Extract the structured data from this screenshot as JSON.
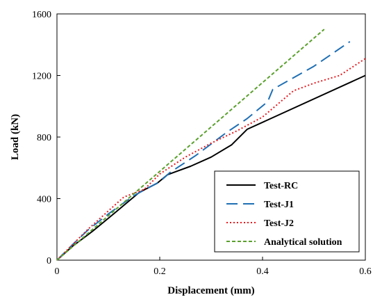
{
  "chart_data": {
    "type": "line",
    "xlabel": "Displacement (mm)",
    "ylabel": "Load (kN)",
    "xlim": [
      0,
      0.6
    ],
    "ylim": [
      0,
      1600
    ],
    "xticks": [
      "0",
      "0.2",
      "0.4",
      "0.6"
    ],
    "yticks": [
      "0",
      "400",
      "800",
      "1200",
      "1600"
    ],
    "xtick_values": [
      0,
      0.2,
      0.4,
      0.6
    ],
    "ytick_values": [
      0,
      400,
      800,
      1200,
      1600
    ],
    "grid": false,
    "legend_position": "bottom-right",
    "series": [
      {
        "name": "Test-RC",
        "color": "#000000",
        "dash": "solid",
        "points": [
          [
            0,
            0
          ],
          [
            0.03,
            90
          ],
          [
            0.07,
            190
          ],
          [
            0.11,
            300
          ],
          [
            0.16,
            440
          ],
          [
            0.195,
            500
          ],
          [
            0.215,
            555
          ],
          [
            0.26,
            610
          ],
          [
            0.3,
            670
          ],
          [
            0.34,
            750
          ],
          [
            0.37,
            850
          ],
          [
            0.6,
            1200
          ]
        ]
      },
      {
        "name": "Test-J1",
        "color": "#1f6fb4",
        "dash": "long-dash",
        "points": [
          [
            0,
            0
          ],
          [
            0.03,
            100
          ],
          [
            0.06,
            195
          ],
          [
            0.1,
            300
          ],
          [
            0.15,
            420
          ],
          [
            0.2,
            510
          ],
          [
            0.22,
            570
          ],
          [
            0.27,
            680
          ],
          [
            0.33,
            830
          ],
          [
            0.37,
            920
          ],
          [
            0.41,
            1030
          ],
          [
            0.42,
            1110
          ],
          [
            0.5,
            1260
          ],
          [
            0.57,
            1420
          ]
        ]
      },
      {
        "name": "Test-J2",
        "color": "#e8191e",
        "dash": "dotted",
        "points": [
          [
            0,
            0
          ],
          [
            0.03,
            100
          ],
          [
            0.06,
            200
          ],
          [
            0.1,
            320
          ],
          [
            0.13,
            410
          ],
          [
            0.17,
            460
          ],
          [
            0.2,
            560
          ],
          [
            0.25,
            670
          ],
          [
            0.3,
            760
          ],
          [
            0.35,
            840
          ],
          [
            0.4,
            930
          ],
          [
            0.46,
            1100
          ],
          [
            0.5,
            1150
          ],
          [
            0.55,
            1200
          ],
          [
            0.6,
            1310
          ]
        ]
      },
      {
        "name": "Analytical solution",
        "color": "#5aa02c",
        "dash": "short-dash",
        "points": [
          [
            0,
            0
          ],
          [
            0.52,
            1500
          ]
        ]
      }
    ]
  }
}
